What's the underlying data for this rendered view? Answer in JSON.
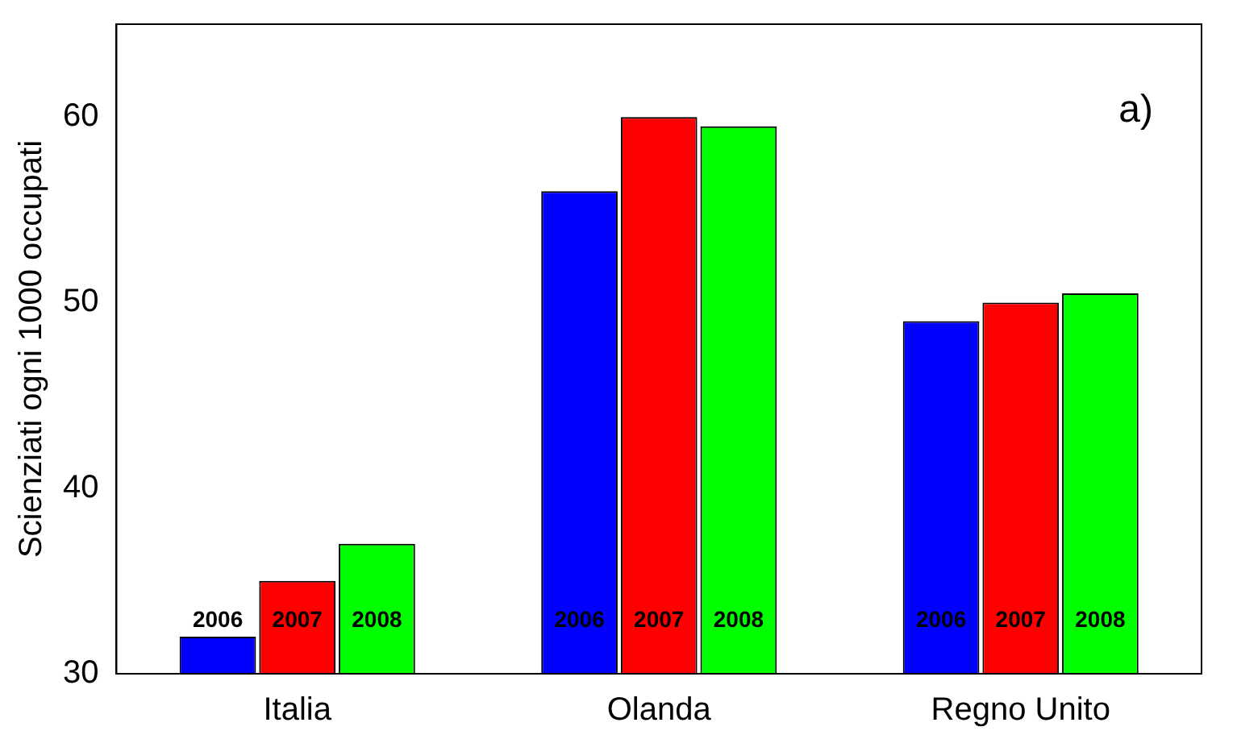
{
  "chart_data": {
    "type": "bar",
    "ylabel": "Scienziati ogni 1000 occupati",
    "categories": [
      "Italia",
      "Olanda",
      "Regno Unito"
    ],
    "series": [
      {
        "name": "2006",
        "color": "#0000ff",
        "values": [
          32,
          56,
          49
        ]
      },
      {
        "name": "2007",
        "color": "#ff0000",
        "values": [
          35,
          60,
          50
        ]
      },
      {
        "name": "2008",
        "color": "#00ff00",
        "values": [
          37,
          59.5,
          50.5
        ]
      }
    ],
    "ylim": [
      30,
      65
    ],
    "yticks": [
      30,
      40,
      50,
      60
    ],
    "grid": false,
    "legend": false,
    "annotations": [
      "a)"
    ]
  }
}
